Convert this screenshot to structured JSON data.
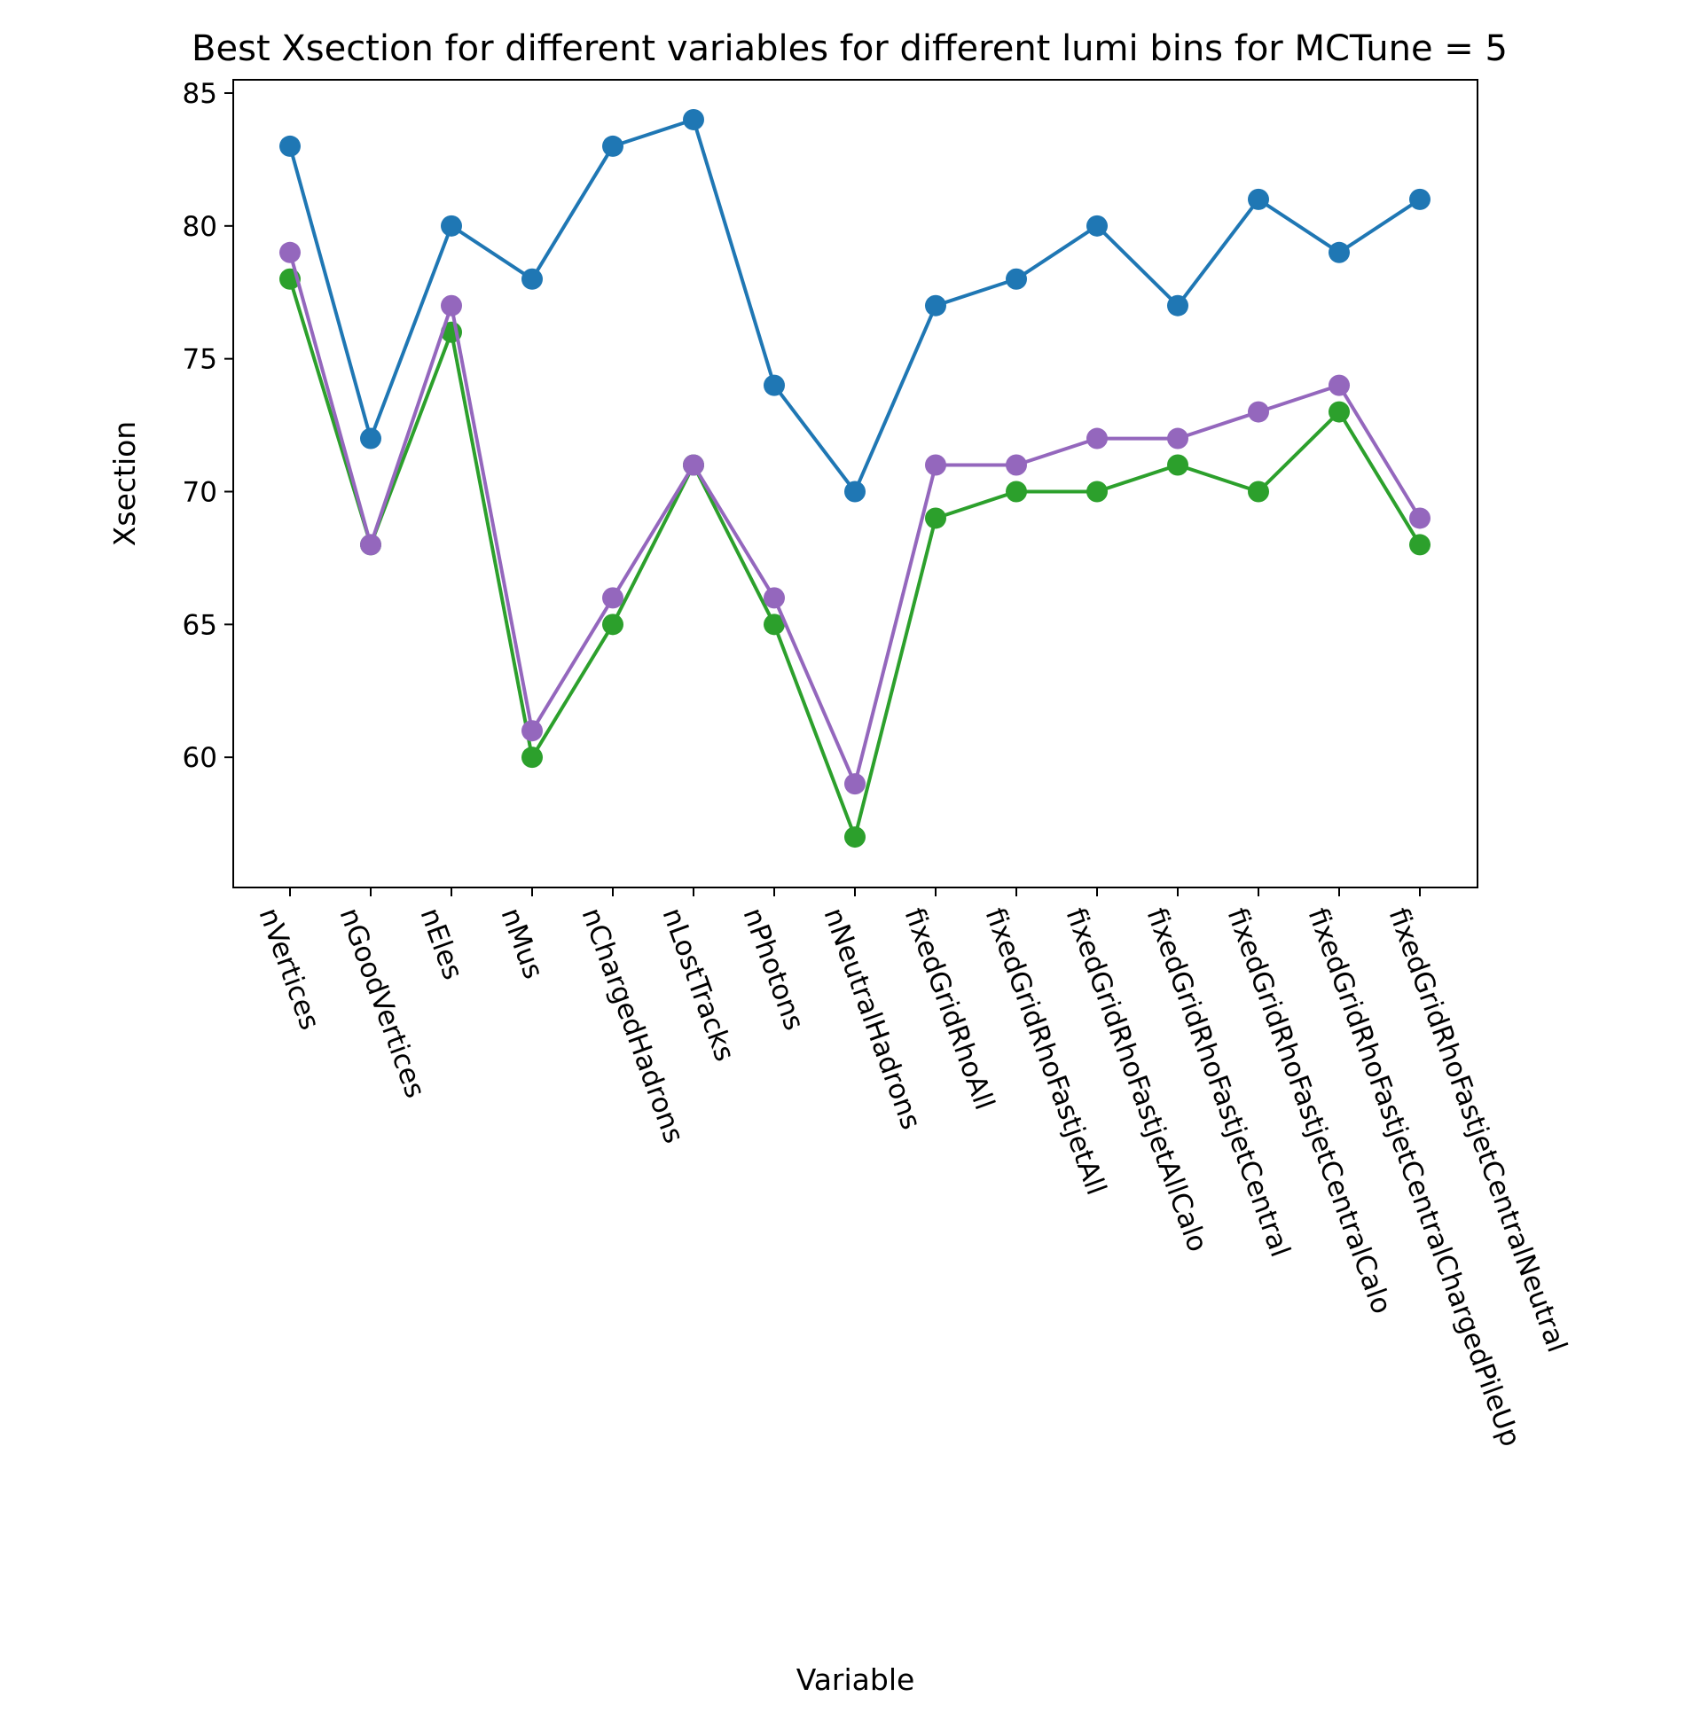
{
  "chart_data": {
    "type": "line",
    "title": "Best Xsection for different variables for different lumi bins for MCTune = 5",
    "xlabel": "Variable",
    "ylabel": "Xsection",
    "categories": [
      "nVertices",
      "nGoodVertices",
      "nEles",
      "nMus",
      "nChargedHadrons",
      "nLostTracks",
      "nPhotons",
      "nNeutralHadrons",
      "fixedGridRhoAll",
      "fixedGridRhoFastjetAll",
      "fixedGridRhoFastjetAllCalo",
      "fixedGridRhoFastjetCentral",
      "fixedGridRhoFastjetCentralCalo",
      "fixedGridRhoFastjetCentralChargedPileUp",
      "fixedGridRhoFastjetCentralNeutral"
    ],
    "ylim": [
      55.1,
      85.5
    ],
    "yticks": [
      60,
      65,
      70,
      75,
      80,
      85
    ],
    "grid": false,
    "series": [
      {
        "color": "#1f77b4",
        "values": [
          83,
          72,
          80,
          78,
          83,
          84,
          74,
          70,
          77,
          78,
          80,
          77,
          81,
          79,
          81
        ]
      },
      {
        "color": "#2ca02c",
        "values": [
          78,
          68,
          76,
          60,
          65,
          71,
          65,
          57,
          69,
          70,
          70,
          71,
          70,
          73,
          68
        ]
      },
      {
        "color": "#9467bd",
        "values": [
          79,
          68,
          77,
          61,
          66,
          71,
          66,
          59,
          71,
          71,
          72,
          72,
          73,
          74,
          69
        ]
      }
    ]
  }
}
